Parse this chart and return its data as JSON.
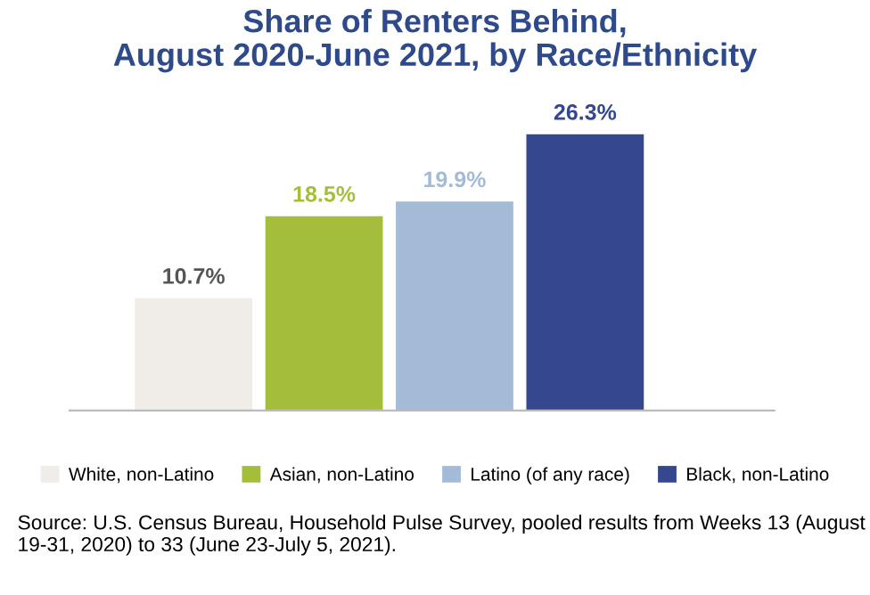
{
  "chart_data": {
    "type": "bar",
    "title": "Share of Renters Behind,\nAugust 2020-June 2021, by Race/Ethnicity",
    "categories": [
      null,
      null,
      null,
      null
    ],
    "stacked": true,
    "series": [
      {
        "name": "White, non-Latino",
        "color": "#f0ece8",
        "values": [
          10.7,
          null,
          null,
          null
        ],
        "value_labels": [
          "10.7%",
          null,
          null,
          null
        ]
      },
      {
        "name": "Asian, non-Latino",
        "color": "#a4bd3b",
        "values": [
          null,
          18.5,
          null,
          null
        ],
        "value_labels": [
          null,
          "18.5%",
          null,
          null
        ]
      },
      {
        "name": "Latino (of any race)",
        "color": "#a3bbd6",
        "values": [
          null,
          null,
          19.9,
          null
        ],
        "value_labels": [
          null,
          null,
          "19.9%",
          null
        ]
      },
      {
        "name": "Black, non-Latino",
        "color": "#34478f",
        "values": [
          null,
          null,
          null,
          26.3
        ],
        "value_labels": [
          null,
          null,
          null,
          "26.3%"
        ]
      }
    ],
    "legend": "bottom",
    "grid": false,
    "annotations": [
      "Source: U.S. Census Bureau, Household Pulse Survey, pooled results from Weeks 13 (August 19-31, 2020) to 33 (June 23-July 5, 2021)."
    ]
  }
}
